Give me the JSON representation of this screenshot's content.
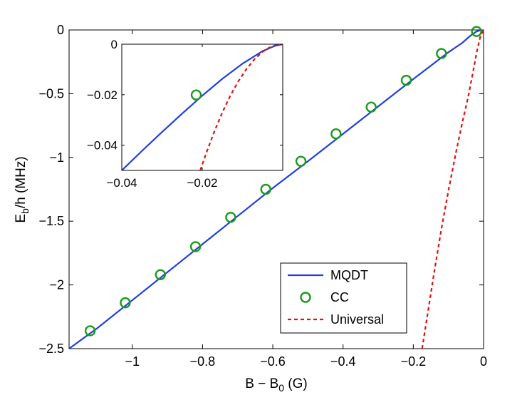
{
  "chart_data": {
    "type": "line",
    "title": "",
    "xlabel": "B − B",
    "xlabel_sub": "0",
    "xlabel_unit": " (G)",
    "ylabel": "E",
    "ylabel_sub": "b",
    "ylabel_unit": "/h (MHz)",
    "xlim": [
      -1.18,
      0
    ],
    "ylim": [
      -2.5,
      0
    ],
    "xticks": [
      -1,
      -0.8,
      -0.6,
      -0.4,
      -0.2,
      0
    ],
    "xtick_labels": [
      "−1",
      "−0.8",
      "−0.6",
      "−0.4",
      "−0.2",
      "0"
    ],
    "yticks": [
      0,
      -0.5,
      -1,
      -1.5,
      -2,
      -2.5
    ],
    "ytick_labels": [
      "0",
      "−0.5",
      "−1",
      "−1.5",
      "−2",
      "−2.5"
    ],
    "legend_position": "bottom-right",
    "series": [
      {
        "name": "MQDT",
        "kind": "line",
        "color": "#1f3fe0",
        "x": [
          -1.18,
          -1.1,
          -1.0,
          -0.9,
          -0.8,
          -0.7,
          -0.6,
          -0.5,
          -0.4,
          -0.3,
          -0.2,
          -0.1,
          -0.06,
          -0.04,
          -0.03,
          -0.02,
          -0.01,
          0
        ],
        "y": [
          -2.5,
          -2.34,
          -2.12,
          -1.9,
          -1.68,
          -1.46,
          -1.24,
          -1.03,
          -0.815,
          -0.6,
          -0.385,
          -0.175,
          -0.1,
          -0.051,
          -0.03,
          -0.012,
          -0.003,
          0
        ]
      },
      {
        "name": "CC",
        "kind": "scatter",
        "color": "#1a9a1a",
        "x": [
          -1.12,
          -1.02,
          -0.92,
          -0.82,
          -0.72,
          -0.62,
          -0.52,
          -0.42,
          -0.32,
          -0.22,
          -0.12,
          -0.02
        ],
        "y": [
          -2.36,
          -2.14,
          -1.92,
          -1.7,
          -1.47,
          -1.25,
          -1.03,
          -0.815,
          -0.605,
          -0.395,
          -0.185,
          -0.012
        ]
      },
      {
        "name": "Universal",
        "kind": "dashed-line",
        "color": "#e01010",
        "x": [
          -0.175,
          -0.16,
          -0.14,
          -0.12,
          -0.1,
          -0.08,
          -0.06,
          -0.045,
          -0.03,
          -0.02,
          -0.01,
          0
        ],
        "y": [
          -2.5,
          -2.24,
          -1.89,
          -1.56,
          -1.26,
          -0.98,
          -0.72,
          -0.54,
          -0.33,
          -0.18,
          -0.06,
          0
        ]
      }
    ],
    "inset": {
      "xlim": [
        -0.04,
        0
      ],
      "ylim": [
        -0.05,
        0
      ],
      "xticks": [
        -0.04,
        -0.02
      ],
      "xtick_labels": [
        "−0.04",
        "−0.02"
      ],
      "yticks": [
        0,
        -0.02,
        -0.04
      ],
      "ytick_labels": [
        "0",
        "−0.02",
        "−0.04"
      ],
      "series": [
        {
          "name": "MQDT",
          "kind": "line",
          "color": "#1f3fe0",
          "x": [
            -0.04,
            -0.035,
            -0.03,
            -0.025,
            -0.02,
            -0.015,
            -0.01,
            -0.005,
            -0.002,
            0
          ],
          "y": [
            -0.05,
            -0.0423,
            -0.0348,
            -0.0275,
            -0.0204,
            -0.0137,
            -0.0077,
            -0.0027,
            -0.0007,
            0
          ]
        },
        {
          "name": "CC",
          "kind": "scatter",
          "color": "#1a9a1a",
          "x": [
            -0.0215
          ],
          "y": [
            -0.0201
          ]
        },
        {
          "name": "Universal",
          "kind": "dashed-line",
          "color": "#e01010",
          "x": [
            -0.0205,
            -0.019,
            -0.017,
            -0.015,
            -0.013,
            -0.011,
            -0.009,
            -0.007,
            -0.005,
            -0.003,
            -0.001,
            0
          ],
          "y": [
            -0.05,
            -0.0431,
            -0.0346,
            -0.027,
            -0.0203,
            -0.0146,
            -0.0098,
            -0.0059,
            -0.003,
            -0.001,
            -0.0001,
            0
          ]
        }
      ]
    }
  }
}
